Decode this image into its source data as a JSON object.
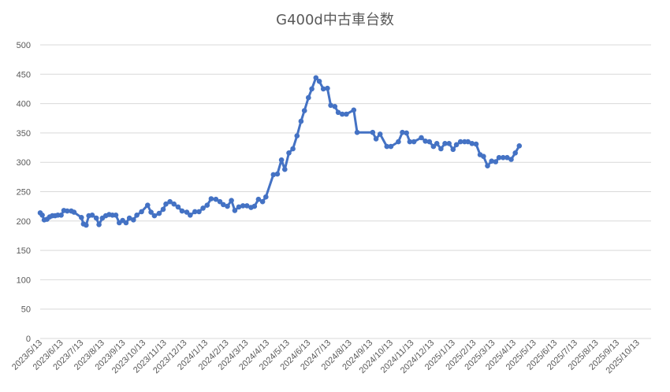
{
  "chart_data": {
    "type": "line",
    "title": "G400d中古車台数",
    "xlabel": "",
    "ylabel": "",
    "ylim": [
      0,
      500
    ],
    "yticks": [
      0,
      50,
      100,
      150,
      200,
      250,
      300,
      350,
      400,
      450,
      500
    ],
    "grid": true,
    "legend": "none",
    "x_tick_labels": [
      "2023/5/13",
      "2023/6/13",
      "2023/7/13",
      "2023/8/13",
      "2023/9/13",
      "2023/10/13",
      "2023/11/13",
      "2023/12/13",
      "2024/1/13",
      "2024/2/13",
      "2024/3/13",
      "2024/4/13",
      "2024/5/13",
      "2024/6/13",
      "2024/7/13",
      "2024/8/13",
      "2024/9/13",
      "2024/10/13",
      "2024/11/13",
      "2024/12/13",
      "2025/1/13",
      "2025/2/13",
      "2025/3/13",
      "2025/4/13",
      "2025/5/13",
      "2025/6/13",
      "2025/7/13",
      "2025/8/13",
      "2025/9/13",
      "2025/10/13"
    ],
    "x_range": [
      "2023/5/13",
      "2025/11/2"
    ],
    "colors": {
      "series": "#4472c4",
      "grid": "#d9d9d9",
      "text": "#595959"
    },
    "series": [
      {
        "values": [
          [
            "2023/5/13",
            214
          ],
          [
            "2023/5/16",
            210
          ],
          [
            "2023/5/19",
            202
          ],
          [
            "2023/5/23",
            203
          ],
          [
            "2023/5/27",
            207
          ],
          [
            "2023/5/31",
            209
          ],
          [
            "2023/6/4",
            209
          ],
          [
            "2023/6/8",
            210
          ],
          [
            "2023/6/13",
            210
          ],
          [
            "2023/6/17",
            218
          ],
          [
            "2023/6/22",
            217
          ],
          [
            "2023/6/28",
            217
          ],
          [
            "2023/7/2",
            215
          ],
          [
            "2023/7/13",
            206
          ],
          [
            "2023/7/16",
            195
          ],
          [
            "2023/7/20",
            193
          ],
          [
            "2023/7/24",
            209
          ],
          [
            "2023/7/29",
            210
          ],
          [
            "2023/8/4",
            205
          ],
          [
            "2023/8/8",
            194
          ],
          [
            "2023/8/13",
            205
          ],
          [
            "2023/8/18",
            209
          ],
          [
            "2023/8/23",
            211
          ],
          [
            "2023/8/28",
            210
          ],
          [
            "2023/9/2",
            210
          ],
          [
            "2023/9/7",
            197
          ],
          [
            "2023/9/12",
            201
          ],
          [
            "2023/9/17",
            197
          ],
          [
            "2023/9/22",
            205
          ],
          [
            "2023/9/28",
            202
          ],
          [
            "2023/10/3",
            210
          ],
          [
            "2023/10/10",
            216
          ],
          [
            "2023/10/19",
            227
          ],
          [
            "2023/10/24",
            215
          ],
          [
            "2023/10/29",
            209
          ],
          [
            "2023/11/5",
            213
          ],
          [
            "2023/11/11",
            220
          ],
          [
            "2023/11/15",
            229
          ],
          [
            "2023/11/21",
            233
          ],
          [
            "2023/11/27",
            229
          ],
          [
            "2023/12/3",
            224
          ],
          [
            "2023/12/9",
            217
          ],
          [
            "2023/12/16",
            215
          ],
          [
            "2023/12/21",
            210
          ],
          [
            "2023/12/28",
            216
          ],
          [
            "2024/1/3",
            216
          ],
          [
            "2024/1/9",
            222
          ],
          [
            "2024/1/15",
            227
          ],
          [
            "2024/1/21",
            238
          ],
          [
            "2024/1/28",
            237
          ],
          [
            "2024/2/3",
            233
          ],
          [
            "2024/2/8",
            228
          ],
          [
            "2024/2/14",
            225
          ],
          [
            "2024/2/20",
            235
          ],
          [
            "2024/2/25",
            218
          ],
          [
            "2024/3/2",
            224
          ],
          [
            "2024/3/8",
            226
          ],
          [
            "2024/3/14",
            226
          ],
          [
            "2024/3/20",
            223
          ],
          [
            "2024/3/25",
            225
          ],
          [
            "2024/3/31",
            237
          ],
          [
            "2024/4/6",
            233
          ],
          [
            "2024/4/11",
            241
          ],
          [
            "2024/4/22",
            279
          ],
          [
            "2024/4/28",
            280
          ],
          [
            "2024/5/4",
            304
          ],
          [
            "2024/5/9",
            288
          ],
          [
            "2024/5/15",
            316
          ],
          [
            "2024/5/21",
            323
          ],
          [
            "2024/5/27",
            345
          ],
          [
            "2024/6/2",
            370
          ],
          [
            "2024/6/7",
            388
          ],
          [
            "2024/6/13",
            410
          ],
          [
            "2024/6/18",
            425
          ],
          [
            "2024/6/24",
            444
          ],
          [
            "2024/6/29",
            438
          ],
          [
            "2024/7/5",
            425
          ],
          [
            "2024/7/11",
            426
          ],
          [
            "2024/7/16",
            397
          ],
          [
            "2024/7/22",
            395
          ],
          [
            "2024/7/27",
            385
          ],
          [
            "2024/8/2",
            382
          ],
          [
            "2024/8/8",
            382
          ],
          [
            "2024/8/19",
            389
          ],
          [
            "2024/8/24",
            351
          ],
          [
            "2024/9/16",
            351
          ],
          [
            "2024/9/21",
            340
          ],
          [
            "2024/9/27",
            348
          ],
          [
            "2024/10/7",
            327
          ],
          [
            "2024/10/13",
            327
          ],
          [
            "2024/10/24",
            335
          ],
          [
            "2024/10/30",
            351
          ],
          [
            "2024/11/5",
            350
          ],
          [
            "2024/11/10",
            335
          ],
          [
            "2024/11/16",
            335
          ],
          [
            "2024/11/27",
            342
          ],
          [
            "2024/12/3",
            336
          ],
          [
            "2024/12/9",
            335
          ],
          [
            "2024/12/15",
            327
          ],
          [
            "2024/12/20",
            332
          ],
          [
            "2024/12/26",
            323
          ],
          [
            "2025/1/1",
            332
          ],
          [
            "2025/1/7",
            332
          ],
          [
            "2025/1/13",
            322
          ],
          [
            "2025/1/18",
            330
          ],
          [
            "2025/1/24",
            335
          ],
          [
            "2025/1/30",
            335
          ],
          [
            "2025/2/4",
            335
          ],
          [
            "2025/2/10",
            332
          ],
          [
            "2025/2/16",
            331
          ],
          [
            "2025/2/22",
            313
          ],
          [
            "2025/2/27",
            310
          ],
          [
            "2025/3/5",
            294
          ],
          [
            "2025/3/11",
            302
          ],
          [
            "2025/3/17",
            301
          ],
          [
            "2025/3/22",
            308
          ],
          [
            "2025/3/28",
            308
          ],
          [
            "2025/4/3",
            308
          ],
          [
            "2025/4/9",
            305
          ],
          [
            "2025/4/15",
            316
          ],
          [
            "2025/4/21",
            328
          ]
        ]
      }
    ]
  }
}
